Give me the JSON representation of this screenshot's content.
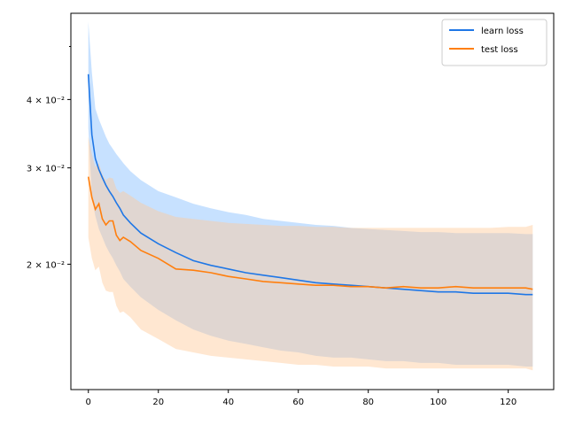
{
  "chart_data": {
    "type": "line",
    "title": "",
    "xlabel": "",
    "ylabel": "",
    "yscale": "log",
    "xlim": [
      -5,
      133
    ],
    "ylim": [
      0.0118,
      0.0575
    ],
    "grid": false,
    "legend": "top-right",
    "x_ticks": [
      0,
      20,
      40,
      60,
      80,
      100,
      120
    ],
    "y_ticks": [
      {
        "value": 0.02,
        "label": "2 × 10⁻²"
      },
      {
        "value": 0.03,
        "label": "3 × 10⁻²"
      },
      {
        "value": 0.04,
        "label": "4 × 10⁻²"
      }
    ],
    "y_minor_ticks": [
      0.05
    ],
    "x": [
      0,
      1,
      2,
      3,
      4,
      5,
      6,
      7,
      8,
      9,
      10,
      12,
      15,
      20,
      25,
      30,
      35,
      40,
      45,
      50,
      55,
      60,
      65,
      70,
      75,
      80,
      85,
      90,
      95,
      100,
      105,
      110,
      115,
      120,
      125,
      127
    ],
    "series": [
      {
        "name": "learn loss",
        "color": "#1f77e6",
        "band_color": "#99c9ff",
        "values": [
          0.0445,
          0.0345,
          0.0312,
          0.0298,
          0.0288,
          0.0279,
          0.0272,
          0.0266,
          0.0259,
          0.0253,
          0.0246,
          0.0238,
          0.0228,
          0.0218,
          0.021,
          0.0203,
          0.0199,
          0.0196,
          0.0193,
          0.0191,
          0.0189,
          0.0187,
          0.0185,
          0.0184,
          0.0183,
          0.0182,
          0.0181,
          0.018,
          0.0179,
          0.0178,
          0.0178,
          0.0177,
          0.0177,
          0.0177,
          0.0176,
          0.0176
        ],
        "upper": [
          0.0555,
          0.0448,
          0.0385,
          0.0368,
          0.0355,
          0.0342,
          0.0332,
          0.0325,
          0.0318,
          0.0312,
          0.0306,
          0.0296,
          0.0285,
          0.0272,
          0.0265,
          0.0258,
          0.0253,
          0.0249,
          0.0246,
          0.0242,
          0.024,
          0.0238,
          0.0236,
          0.0235,
          0.0233,
          0.0232,
          0.0231,
          0.023,
          0.0229,
          0.0229,
          0.0228,
          0.0228,
          0.0228,
          0.0228,
          0.0227,
          0.0227
        ],
        "lower": [
          0.0355,
          0.0265,
          0.0245,
          0.0232,
          0.0224,
          0.0216,
          0.021,
          0.0205,
          0.0199,
          0.0194,
          0.0188,
          0.0182,
          0.0174,
          0.0165,
          0.0158,
          0.0152,
          0.0148,
          0.0145,
          0.0143,
          0.0141,
          0.0139,
          0.0138,
          0.0136,
          0.0135,
          0.0135,
          0.0134,
          0.0133,
          0.0133,
          0.0132,
          0.0132,
          0.0131,
          0.0131,
          0.0131,
          0.0131,
          0.013,
          0.013
        ]
      },
      {
        "name": "test loss",
        "color": "#ff7f0e",
        "band_color": "#ffc999",
        "values": [
          0.0289,
          0.0265,
          0.0252,
          0.0258,
          0.0242,
          0.0236,
          0.024,
          0.024,
          0.0226,
          0.0221,
          0.0224,
          0.022,
          0.0212,
          0.0205,
          0.0196,
          0.0195,
          0.0193,
          0.019,
          0.0188,
          0.0186,
          0.0185,
          0.0184,
          0.0183,
          0.0183,
          0.0182,
          0.0182,
          0.0181,
          0.0182,
          0.0181,
          0.0181,
          0.0182,
          0.0181,
          0.0181,
          0.0181,
          0.0181,
          0.018
        ],
        "upper": [
          0.0342,
          0.0318,
          0.0301,
          0.0306,
          0.0292,
          0.0285,
          0.0288,
          0.0287,
          0.0275,
          0.027,
          0.0272,
          0.0267,
          0.0259,
          0.025,
          0.0244,
          0.0242,
          0.024,
          0.0238,
          0.0237,
          0.0236,
          0.0235,
          0.0235,
          0.0234,
          0.0234,
          0.0233,
          0.0233,
          0.0233,
          0.0233,
          0.0233,
          0.0233,
          0.0233,
          0.0233,
          0.0233,
          0.0234,
          0.0234,
          0.0236
        ],
        "lower": [
          0.0224,
          0.0205,
          0.0195,
          0.0198,
          0.0185,
          0.0179,
          0.0178,
          0.0178,
          0.0168,
          0.0163,
          0.0164,
          0.016,
          0.0152,
          0.0146,
          0.014,
          0.0138,
          0.0136,
          0.0135,
          0.0134,
          0.0133,
          0.0132,
          0.0131,
          0.0131,
          0.013,
          0.013,
          0.013,
          0.0129,
          0.0129,
          0.0129,
          0.0129,
          0.0129,
          0.0129,
          0.0129,
          0.0129,
          0.0129,
          0.0128
        ]
      }
    ]
  }
}
